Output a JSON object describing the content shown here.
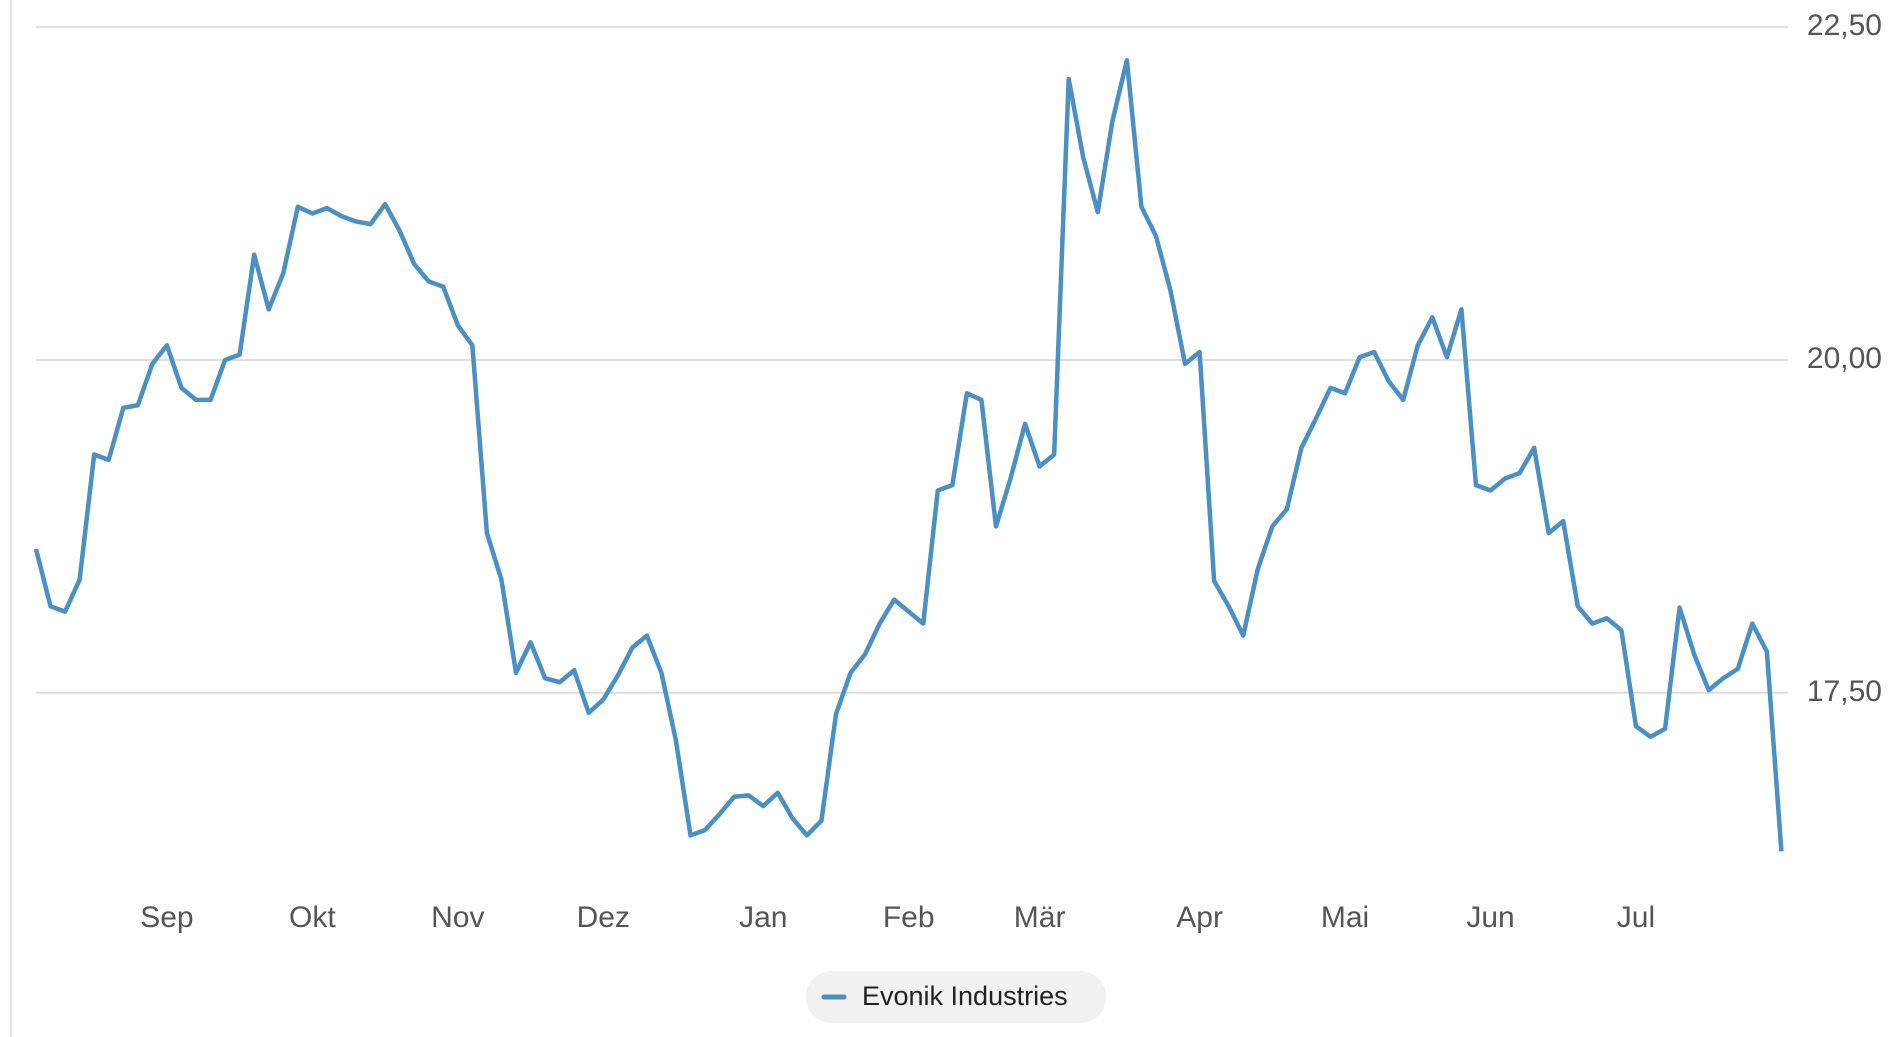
{
  "chart_data": {
    "type": "line",
    "categories": [
      null,
      null,
      null,
      null,
      null,
      null,
      null,
      null,
      null,
      "Sep",
      null,
      null,
      null,
      null,
      null,
      null,
      null,
      null,
      null,
      "Okt",
      null,
      null,
      null,
      null,
      null,
      null,
      null,
      null,
      null,
      "Nov",
      null,
      null,
      null,
      null,
      null,
      null,
      null,
      null,
      null,
      "Dez",
      null,
      null,
      null,
      null,
      null,
      null,
      null,
      null,
      null,
      null,
      "Jan",
      null,
      null,
      null,
      null,
      null,
      null,
      null,
      null,
      null,
      "Feb",
      null,
      null,
      null,
      null,
      null,
      null,
      null,
      null,
      "Mär",
      null,
      null,
      null,
      null,
      null,
      null,
      null,
      null,
      null,
      null,
      "Apr",
      null,
      null,
      null,
      null,
      null,
      null,
      null,
      null,
      null,
      "Mai",
      null,
      null,
      null,
      null,
      null,
      null,
      null,
      null,
      null,
      "Jun",
      null,
      null,
      null,
      null,
      null,
      null,
      null,
      null,
      null,
      "Jul",
      null,
      null,
      null,
      null,
      null,
      null,
      null,
      null,
      null,
      null
    ],
    "series": [
      {
        "name": "Evonik Industries",
        "color": "#4a90c4",
        "values": [
          18.58,
          18.15,
          18.11,
          18.35,
          19.29,
          19.25,
          19.64,
          19.66,
          19.97,
          20.11,
          19.79,
          19.7,
          19.7,
          20.0,
          20.04,
          20.79,
          20.38,
          20.65,
          21.15,
          21.1,
          21.14,
          21.08,
          21.04,
          21.02,
          21.17,
          20.97,
          20.72,
          20.59,
          20.55,
          20.26,
          20.11,
          18.7,
          18.35,
          17.65,
          17.88,
          17.61,
          17.58,
          17.67,
          17.35,
          17.45,
          17.63,
          17.84,
          17.93,
          17.65,
          17.14,
          16.43,
          16.47,
          16.59,
          16.72,
          16.73,
          16.65,
          16.75,
          16.56,
          16.43,
          16.54,
          17.34,
          17.65,
          17.79,
          18.02,
          18.2,
          18.11,
          18.02,
          19.02,
          19.06,
          19.75,
          19.7,
          18.75,
          19.11,
          19.52,
          19.2,
          19.29,
          22.11,
          21.52,
          21.11,
          21.79,
          22.25,
          21.15,
          20.93,
          20.52,
          19.97,
          20.06,
          18.34,
          18.15,
          17.93,
          18.43,
          18.75,
          18.88,
          19.34,
          19.56,
          19.79,
          19.75,
          20.02,
          20.06,
          19.84,
          19.7,
          20.11,
          20.32,
          20.02,
          20.38,
          19.06,
          19.02,
          19.11,
          19.15,
          19.34,
          18.7,
          18.79,
          18.15,
          18.02,
          18.06,
          17.97,
          17.25,
          17.17,
          17.23,
          18.14,
          17.79,
          17.52,
          17.61,
          17.68,
          18.02,
          17.81,
          16.31
        ]
      }
    ],
    "ylim": [
      16.2,
      22.6
    ],
    "yticks": [
      {
        "value": 17.5,
        "label": "17,50"
      },
      {
        "value": 20,
        "label": "20,00"
      },
      {
        "value": 22.5,
        "label": "22,50"
      }
    ],
    "grid": true
  }
}
